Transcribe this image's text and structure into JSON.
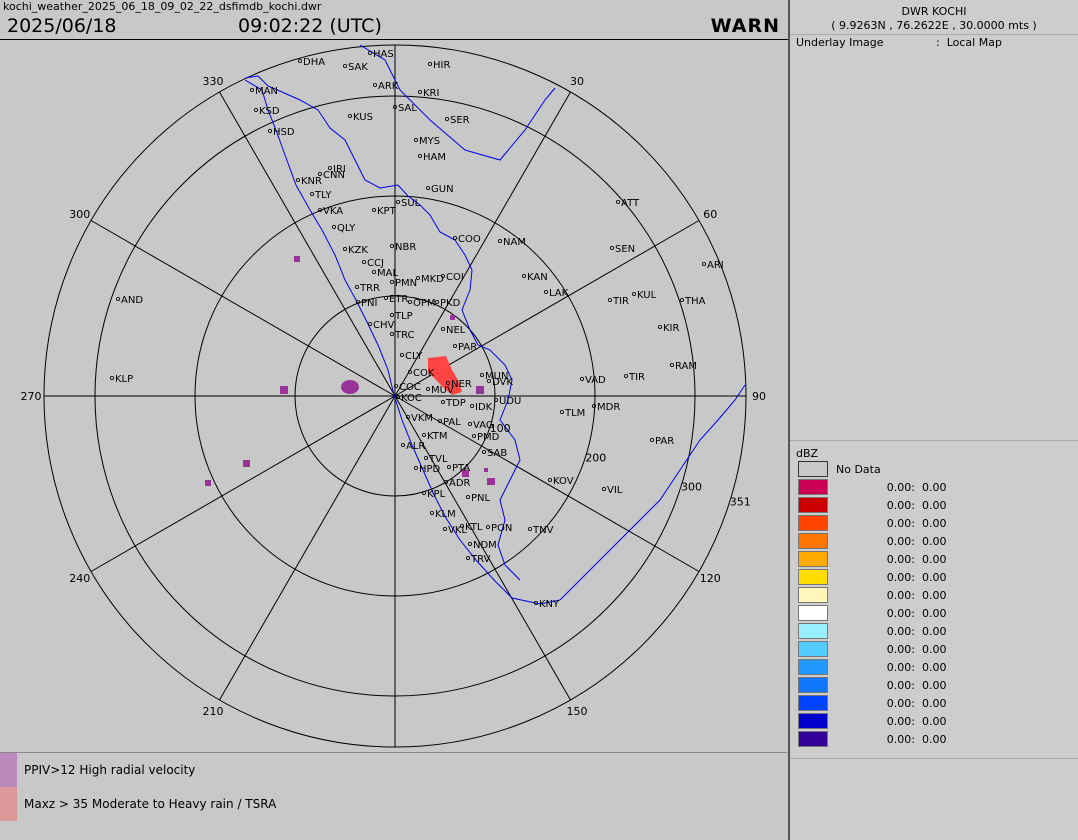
{
  "header": {
    "filename": "kochi_weather_2025_06_18_09_02_22_dsfimdb_kochi.dwr",
    "date": "2025/06/18",
    "time": "09:02:22 (UTC)",
    "status": "WARN"
  },
  "station": {
    "title": "DWR KOCHI",
    "coords": "( 9.9263N , 76.2622E , 30.0000 mts )"
  },
  "underlay": {
    "label": "Underlay Image",
    "sep": ":",
    "value": "Local Map"
  },
  "legend": {
    "title": "dBZ",
    "no_data": "No Data",
    "rows": [
      {
        "color": "#cc0055",
        "min": "0.00:",
        "max": "0.00"
      },
      {
        "color": "#cc0000",
        "min": "0.00:",
        "max": "0.00"
      },
      {
        "color": "#ff4400",
        "min": "0.00:",
        "max": "0.00"
      },
      {
        "color": "#ff7700",
        "min": "0.00:",
        "max": "0.00"
      },
      {
        "color": "#ffaa00",
        "min": "0.00:",
        "max": "0.00"
      },
      {
        "color": "#ffdd00",
        "min": "0.00:",
        "max": "0.00"
      },
      {
        "color": "#fff6bb",
        "min": "0.00:",
        "max": "0.00"
      },
      {
        "color": "#ffffff",
        "min": "0.00:",
        "max": "0.00"
      },
      {
        "color": "#99eeff",
        "min": "0.00:",
        "max": "0.00"
      },
      {
        "color": "#55ccff",
        "min": "0.00:",
        "max": "0.00"
      },
      {
        "color": "#2299ff",
        "min": "0.00:",
        "max": "0.00"
      },
      {
        "color": "#1177ff",
        "min": "0.00:",
        "max": "0.00"
      },
      {
        "color": "#0044ff",
        "min": "0.00:",
        "max": "0.00"
      },
      {
        "color": "#0000cc",
        "min": "0.00:",
        "max": "0.00"
      },
      {
        "color": "#330099",
        "min": "0.00:",
        "max": "0.00"
      }
    ]
  },
  "alerts": [
    {
      "color": "#bb88bb",
      "text": "PPIV>12 High radial velocity"
    },
    {
      "color": "#dd9999",
      "text": "Maxz > 35  Moderate to Heavy rain / TSRA"
    }
  ],
  "radar": {
    "bearing_labels": [
      {
        "text": "30",
        "az": 30
      },
      {
        "text": "60",
        "az": 60
      },
      {
        "text": "90",
        "az": 90
      },
      {
        "text": "120",
        "az": 120
      },
      {
        "text": "150",
        "az": 150
      },
      {
        "text": "210",
        "az": 210
      },
      {
        "text": "240",
        "az": 240
      },
      {
        "text": "270",
        "az": 270
      },
      {
        "text": "300",
        "az": 300
      },
      {
        "text": "330",
        "az": 330
      }
    ],
    "range_labels": [
      {
        "text": "100",
        "az": 107
      },
      {
        "text": "200",
        "az": 107
      },
      {
        "text": "300",
        "az": 107
      },
      {
        "text": "351",
        "az": 107
      }
    ],
    "places": [
      "HAS",
      "DHA",
      "SAK",
      "HIR",
      "ARK",
      "KRI",
      "MAN",
      "SAL",
      "KSD",
      "KUS",
      "SER",
      "HSD",
      "MYS",
      "HAM",
      "IRI",
      "KNR",
      "CNN",
      "TLY",
      "GUN",
      "VKA",
      "KPT",
      "SUL",
      "ATT",
      "QLY",
      "COO",
      "NAM",
      "SEN",
      "ARI",
      "KZK",
      "NBR",
      "CCJ",
      "MAL",
      "KAN",
      "PMN",
      "MKD",
      "COI",
      "AND",
      "LAK",
      "TIR",
      "KUL",
      "THA",
      "PNI",
      "TRR",
      "ETR",
      "OPM",
      "PKD",
      "TLP",
      "NEL",
      "CHV",
      "KIR",
      "TRC",
      "PAR",
      "RAM",
      "CLY",
      "KLP",
      "COK",
      "MUN",
      "DVK",
      "VAD",
      "TIR",
      "COC",
      "MUV",
      "NER",
      "KOC",
      "UDU",
      "TDP",
      "IDK",
      "MDR",
      "TLM",
      "VKM",
      "PAL",
      "VAG",
      "KTM",
      "PMD",
      "PAR",
      "ALR",
      "SAB",
      "TVL",
      "HPD",
      "PTA",
      "KOV",
      "VIL",
      "ADR",
      "KPL",
      "PNL",
      "KLM",
      "VKL",
      "KTL",
      "PON",
      "TNV",
      "NDM",
      "TRV",
      "KNY"
    ],
    "echo_colors": {
      "hot": "#ff4444",
      "velocity": "#993399",
      "coast": "#0000ee"
    }
  }
}
